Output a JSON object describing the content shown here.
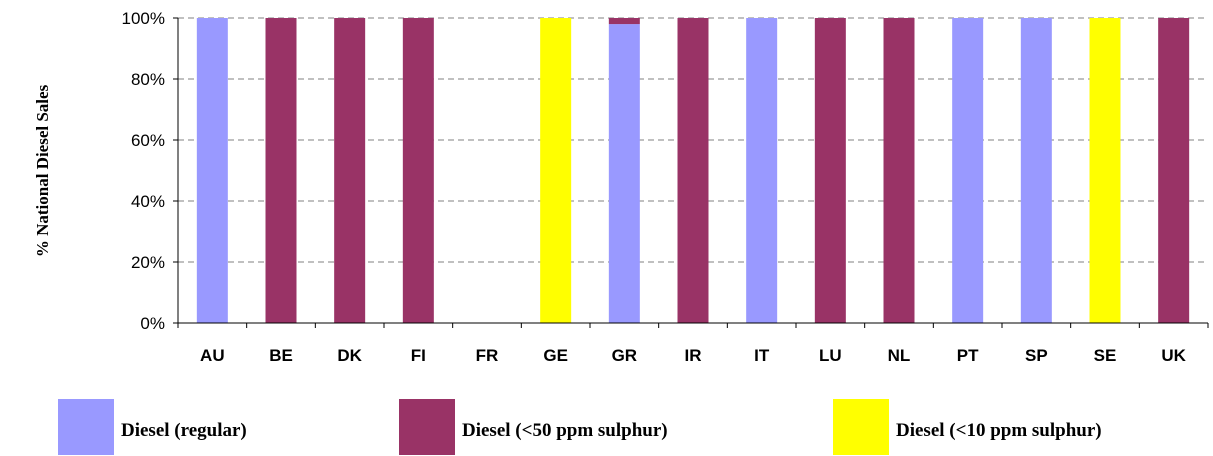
{
  "chart_data": {
    "type": "bar",
    "stacked": true,
    "title": "",
    "xlabel": "",
    "ylabel": "% National Diesel Sales",
    "ylim": [
      0,
      100
    ],
    "yticks": [
      "0%",
      "20%",
      "40%",
      "60%",
      "80%",
      "100%"
    ],
    "grid": "horizontal dashed",
    "legend_position": "bottom",
    "categories": [
      "AU",
      "BE",
      "DK",
      "FI",
      "FR",
      "GE",
      "GR",
      "IR",
      "IT",
      "LU",
      "NL",
      "PT",
      "SP",
      "SE",
      "UK"
    ],
    "series": [
      {
        "name": "Diesel (regular)",
        "color": "#9999ff",
        "values": [
          100,
          0,
          0,
          0,
          0,
          0,
          98,
          0,
          100,
          0,
          0,
          100,
          100,
          0,
          0
        ]
      },
      {
        "name": "Diesel (<50 ppm sulphur)",
        "color": "#993366",
        "values": [
          0,
          100,
          100,
          100,
          0,
          0,
          2,
          100,
          0,
          100,
          100,
          0,
          0,
          0,
          100
        ]
      },
      {
        "name": "Diesel (<10 ppm sulphur)",
        "color": "#ffff00",
        "values": [
          0,
          0,
          0,
          0,
          0,
          100,
          0,
          0,
          0,
          0,
          0,
          0,
          0,
          100,
          0
        ]
      }
    ]
  }
}
